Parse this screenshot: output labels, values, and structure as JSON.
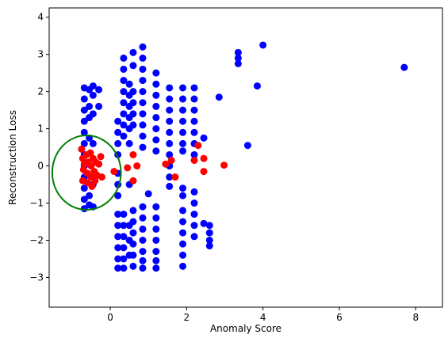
{
  "chart_data": {
    "type": "scatter",
    "title": "",
    "xlabel": "Anomaly Score",
    "ylabel": "Reconstruction Loss",
    "xlim": [
      -1.6,
      8.7
    ],
    "ylim": [
      -3.8,
      4.25
    ],
    "xticks": [
      0,
      2,
      4,
      6,
      8
    ],
    "yticks": [
      -3,
      -2,
      -1,
      0,
      1,
      2,
      3,
      4
    ],
    "grid": false,
    "legend": "none",
    "series": [
      {
        "color": "#0000ff",
        "points": [
          [
            -0.68,
            2.1
          ],
          [
            -0.68,
            1.8
          ],
          [
            -0.68,
            1.5
          ],
          [
            -0.68,
            1.2
          ],
          [
            -0.68,
            0.9
          ],
          [
            -0.68,
            0.6
          ],
          [
            -0.68,
            0.3
          ],
          [
            -0.68,
            0.0
          ],
          [
            -0.68,
            -0.3
          ],
          [
            -0.68,
            -0.6
          ],
          [
            -0.68,
            -0.9
          ],
          [
            -0.68,
            -1.15
          ],
          [
            -0.55,
            2.05
          ],
          [
            -0.55,
            1.6
          ],
          [
            -0.55,
            1.3
          ],
          [
            -0.55,
            0.75
          ],
          [
            -0.55,
            -0.8
          ],
          [
            -0.55,
            -1.05
          ],
          [
            -0.45,
            2.15
          ],
          [
            -0.45,
            1.9
          ],
          [
            -0.45,
            1.4
          ],
          [
            -0.45,
            0.6
          ],
          [
            -0.45,
            -0.5
          ],
          [
            -0.45,
            -1.1
          ],
          [
            -0.3,
            2.05
          ],
          [
            -0.3,
            1.6
          ],
          [
            0.2,
            1.2
          ],
          [
            0.2,
            0.9
          ],
          [
            0.2,
            0.6
          ],
          [
            0.2,
            0.3
          ],
          [
            0.2,
            -0.2
          ],
          [
            0.2,
            -0.5
          ],
          [
            0.2,
            -0.8
          ],
          [
            0.2,
            -1.3
          ],
          [
            0.2,
            -1.6
          ],
          [
            0.2,
            -1.9
          ],
          [
            0.2,
            -2.2
          ],
          [
            0.2,
            -2.5
          ],
          [
            0.2,
            -2.75
          ],
          [
            0.35,
            2.9
          ],
          [
            0.35,
            2.6
          ],
          [
            0.35,
            2.3
          ],
          [
            0.35,
            2.0
          ],
          [
            0.35,
            1.7
          ],
          [
            0.35,
            1.4
          ],
          [
            0.35,
            1.1
          ],
          [
            0.35,
            0.8
          ],
          [
            0.35,
            -1.3
          ],
          [
            0.35,
            -1.6
          ],
          [
            0.35,
            -1.9
          ],
          [
            0.35,
            -2.2
          ],
          [
            0.35,
            -2.5
          ],
          [
            0.35,
            -2.75
          ],
          [
            0.5,
            2.2
          ],
          [
            0.5,
            1.9
          ],
          [
            0.5,
            1.6
          ],
          [
            0.5,
            1.3
          ],
          [
            0.5,
            1.0
          ],
          [
            0.5,
            0.6
          ],
          [
            0.5,
            -0.5
          ],
          [
            0.5,
            -1.6
          ],
          [
            0.5,
            -2.0
          ],
          [
            0.5,
            -2.4
          ],
          [
            0.6,
            3.05
          ],
          [
            0.6,
            2.7
          ],
          [
            0.6,
            2.0
          ],
          [
            0.6,
            1.7
          ],
          [
            0.6,
            1.4
          ],
          [
            0.6,
            1.1
          ],
          [
            0.6,
            -1.2
          ],
          [
            0.6,
            -1.5
          ],
          [
            0.6,
            -1.8
          ],
          [
            0.6,
            -2.1
          ],
          [
            0.6,
            -2.4
          ],
          [
            0.6,
            -2.7
          ],
          [
            0.85,
            3.2
          ],
          [
            0.85,
            2.9
          ],
          [
            0.85,
            2.6
          ],
          [
            0.85,
            2.3
          ],
          [
            0.85,
            2.0
          ],
          [
            0.85,
            1.7
          ],
          [
            0.85,
            1.4
          ],
          [
            0.85,
            1.1
          ],
          [
            0.85,
            0.8
          ],
          [
            0.85,
            0.5
          ],
          [
            0.85,
            -1.1
          ],
          [
            0.85,
            -1.4
          ],
          [
            0.85,
            -1.7
          ],
          [
            0.85,
            -2.0
          ],
          [
            0.85,
            -2.3
          ],
          [
            0.85,
            -2.55
          ],
          [
            0.85,
            -2.75
          ],
          [
            1.0,
            -0.75
          ],
          [
            1.2,
            2.5
          ],
          [
            1.2,
            2.2
          ],
          [
            1.2,
            1.9
          ],
          [
            1.2,
            1.6
          ],
          [
            1.2,
            1.3
          ],
          [
            1.2,
            1.0
          ],
          [
            1.2,
            0.7
          ],
          [
            1.2,
            0.4
          ],
          [
            1.2,
            -1.1
          ],
          [
            1.2,
            -1.4
          ],
          [
            1.2,
            -1.7
          ],
          [
            1.2,
            -2.0
          ],
          [
            1.2,
            -2.3
          ],
          [
            1.2,
            -2.55
          ],
          [
            1.2,
            -2.75
          ],
          [
            1.55,
            2.1
          ],
          [
            1.55,
            1.8
          ],
          [
            1.55,
            1.5
          ],
          [
            1.55,
            1.2
          ],
          [
            1.55,
            0.9
          ],
          [
            1.55,
            0.6
          ],
          [
            1.55,
            0.3
          ],
          [
            1.55,
            0.0
          ],
          [
            1.55,
            -0.3
          ],
          [
            1.55,
            -0.55
          ],
          [
            1.9,
            2.1
          ],
          [
            1.9,
            1.8
          ],
          [
            1.9,
            1.5
          ],
          [
            1.9,
            1.2
          ],
          [
            1.9,
            0.9
          ],
          [
            1.9,
            0.6
          ],
          [
            1.9,
            0.4
          ],
          [
            1.9,
            -0.6
          ],
          [
            1.9,
            -0.8
          ],
          [
            1.9,
            -1.2
          ],
          [
            1.9,
            -1.5
          ],
          [
            1.9,
            -1.8
          ],
          [
            1.9,
            -2.1
          ],
          [
            1.9,
            -2.4
          ],
          [
            1.9,
            -2.7
          ],
          [
            2.2,
            2.1
          ],
          [
            2.2,
            1.8
          ],
          [
            2.2,
            1.5
          ],
          [
            2.2,
            1.2
          ],
          [
            2.2,
            0.9
          ],
          [
            2.2,
            0.6
          ],
          [
            2.2,
            0.3
          ],
          [
            2.2,
            -0.7
          ],
          [
            2.2,
            -1.0
          ],
          [
            2.2,
            -1.3
          ],
          [
            2.2,
            -1.6
          ],
          [
            2.2,
            -1.9
          ],
          [
            2.45,
            0.75
          ],
          [
            2.45,
            -1.55
          ],
          [
            2.6,
            -1.6
          ],
          [
            2.6,
            -1.8
          ],
          [
            2.6,
            -2.0
          ],
          [
            2.6,
            -2.15
          ],
          [
            2.85,
            1.85
          ],
          [
            3.35,
            3.05
          ],
          [
            3.35,
            2.9
          ],
          [
            3.35,
            2.75
          ],
          [
            3.6,
            0.55
          ],
          [
            3.85,
            2.15
          ],
          [
            4.0,
            3.25
          ],
          [
            7.7,
            2.65
          ]
        ]
      },
      {
        "color": "#ff0000",
        "points": [
          [
            -0.75,
            0.45
          ],
          [
            -0.72,
            0.2
          ],
          [
            -0.7,
            -0.1
          ],
          [
            -0.72,
            -0.4
          ],
          [
            -0.68,
            0.05
          ],
          [
            -0.62,
            0.3
          ],
          [
            -0.6,
            -0.2
          ],
          [
            -0.58,
            0.1
          ],
          [
            -0.6,
            -0.45
          ],
          [
            -0.52,
            0.35
          ],
          [
            -0.5,
            0.0
          ],
          [
            -0.5,
            -0.3
          ],
          [
            -0.48,
            -0.55
          ],
          [
            -0.45,
            0.2
          ],
          [
            -0.42,
            -0.15
          ],
          [
            -0.4,
            -0.4
          ],
          [
            -0.38,
            0.1
          ],
          [
            -0.35,
            -0.25
          ],
          [
            -0.3,
            0.05
          ],
          [
            -0.25,
            0.25
          ],
          [
            -0.22,
            -0.3
          ],
          [
            0.1,
            -0.15
          ],
          [
            0.45,
            -0.05
          ],
          [
            0.6,
            0.3
          ],
          [
            0.6,
            -0.4
          ],
          [
            0.7,
            0.0
          ],
          [
            1.45,
            0.05
          ],
          [
            1.6,
            0.15
          ],
          [
            1.7,
            -0.3
          ],
          [
            2.2,
            0.15
          ],
          [
            2.3,
            0.55
          ],
          [
            2.45,
            0.2
          ],
          [
            2.45,
            -0.15
          ],
          [
            2.98,
            0.02
          ]
        ]
      }
    ],
    "annotations": [
      {
        "type": "circle",
        "cx": -0.62,
        "cy": -0.18,
        "rx": 0.9,
        "ry": 1.0,
        "color": "#008000"
      }
    ]
  }
}
